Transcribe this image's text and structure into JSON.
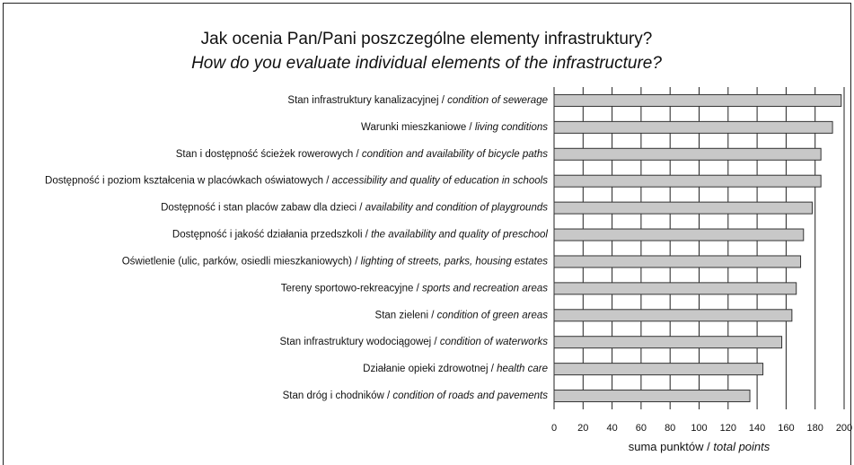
{
  "chart_data": {
    "type": "bar",
    "orientation": "horizontal",
    "title": "Jak ocenia Pan/Pani poszczególne elementy infrastruktury?",
    "subtitle": "How do you evaluate individual elements of the infrastructure?",
    "categories": [
      [
        "Stan infrastruktury kanalizacyjnej /",
        "condition of sewerage"
      ],
      [
        "Warunki mieszkaniowe /",
        "living conditions"
      ],
      [
        "Stan i dostępność ścieżek rowerowych /",
        "condition and availability of bicycle paths"
      ],
      [
        "Dostępność i poziom kształcenia w placówkach oświatowych /",
        "accessibility and quality of education in schools"
      ],
      [
        "Dostępność i stan placów zabaw dla dzieci /",
        "availability and condition of playgrounds"
      ],
      [
        "Dostępność i jakość działania przedszkoli /",
        "the availability and quality of preschool"
      ],
      [
        "Oświetlenie (ulic, parków, osiedli mieszkaniowych) /",
        "lighting of streets, parks, housing estates"
      ],
      [
        "Tereny sportowo-rekreacyjne /",
        "sports and recreation areas"
      ],
      [
        "Stan zieleni /",
        "condition of green areas"
      ],
      [
        "Stan infrastruktury wodociągowej /",
        "condition of waterworks"
      ],
      [
        "Działanie opieki zdrowotnej /",
        "health care"
      ],
      [
        "Stan dróg i chodników /",
        "condition of roads and pavements"
      ]
    ],
    "values": [
      198,
      192,
      184,
      184,
      178,
      172,
      170,
      167,
      164,
      157,
      144,
      135
    ],
    "color": "#c8c8c8",
    "xlabel": [
      "suma punktów /",
      "total points"
    ],
    "xlim": [
      0,
      200
    ],
    "xticks": [
      0,
      20,
      40,
      60,
      80,
      100,
      120,
      140,
      160,
      180,
      200
    ],
    "grid": true
  }
}
